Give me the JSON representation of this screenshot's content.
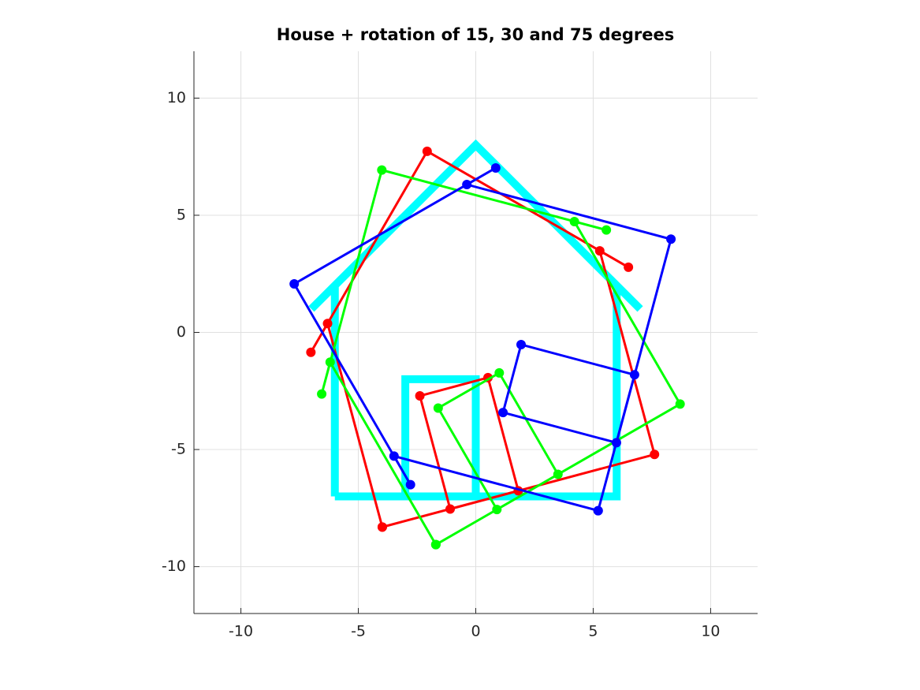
{
  "chart_data": {
    "type": "line",
    "title": "House + rotation of 15, 30 and 75 degrees",
    "xlim": [
      -12,
      12
    ],
    "ylim": [
      -12,
      12
    ],
    "xticks": [
      -10,
      -5,
      0,
      5,
      10
    ],
    "yticks": [
      -10,
      -5,
      0,
      5,
      10
    ],
    "grid": true,
    "series": [
      {
        "color": "#00ffff",
        "markers": false,
        "width": 10,
        "x": [
          -6,
          -6,
          -7,
          0,
          7,
          6,
          6,
          -3,
          -3,
          0,
          0,
          -6
        ],
        "values": [
          -7,
          2,
          1,
          8,
          1,
          2,
          -7,
          -7,
          -2,
          -2,
          -7,
          -7
        ]
      },
      {
        "color": "#ff0000",
        "markers": true,
        "width": 3,
        "x": [
          -3.98,
          -6.31,
          -7.02,
          -2.07,
          6.5,
          5.28,
          7.61,
          -1.09,
          -2.38,
          0.52,
          1.81,
          -3.98
        ],
        "values": [
          -8.31,
          0.38,
          -0.85,
          7.73,
          2.78,
          3.48,
          -5.21,
          -7.54,
          -2.71,
          -1.93,
          -6.76,
          -8.31
        ]
      },
      {
        "color": "#00ff00",
        "markers": true,
        "width": 3,
        "x": [
          -1.7,
          -6.2,
          -6.56,
          -4,
          5.56,
          4.2,
          8.7,
          0.9,
          -1.6,
          1,
          3.5,
          -1.7
        ],
        "values": [
          -9.06,
          -1.27,
          -2.63,
          6.93,
          4.37,
          4.73,
          -3.06,
          -7.56,
          -3.23,
          -1.73,
          -6.06,
          -9.06
        ]
      },
      {
        "color": "#0000ff",
        "markers": true,
        "width": 3,
        "x": [
          5.21,
          -3.48,
          -2.78,
          -7.73,
          0.85,
          -0.38,
          8.31,
          5.99,
          1.16,
          1.93,
          6.76,
          5.21
        ],
        "values": [
          -7.61,
          -5.28,
          -6.5,
          2.07,
          7.02,
          6.31,
          3.98,
          -4.71,
          -3.42,
          -0.52,
          -1.81,
          -7.61
        ]
      }
    ]
  }
}
